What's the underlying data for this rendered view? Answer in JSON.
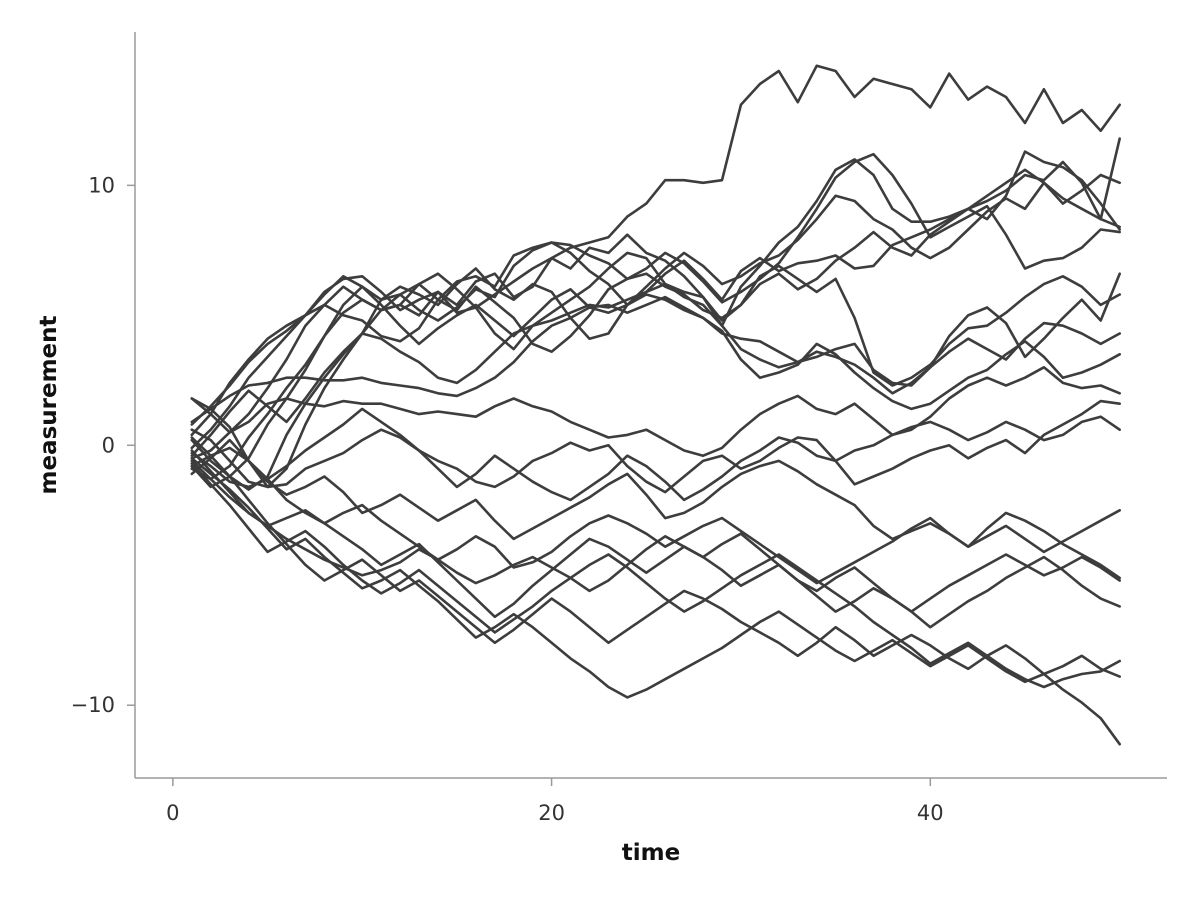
{
  "chart_data": {
    "type": "line",
    "title": "",
    "xlabel": "time",
    "ylabel": "measurement",
    "xlim": [
      -2,
      52.5
    ],
    "ylim": [
      -12.8,
      15.9
    ],
    "xticks": [
      0,
      20,
      40
    ],
    "yticks": [
      -10,
      0,
      10
    ],
    "xtick_labels": [
      "0",
      "20",
      "40"
    ],
    "ytick_labels": [
      "−10",
      "0",
      "10"
    ],
    "grid": false,
    "line_color": "#3d3d3d",
    "x": [
      1,
      2,
      3,
      4,
      5,
      6,
      7,
      8,
      9,
      10,
      11,
      12,
      13,
      14,
      15,
      16,
      17,
      18,
      19,
      20,
      21,
      22,
      23,
      24,
      25,
      26,
      27,
      28,
      29,
      30,
      31,
      32,
      33,
      34,
      35,
      36,
      37,
      38,
      39,
      40,
      41,
      42,
      43,
      44,
      45,
      46,
      47,
      48,
      49,
      50
    ],
    "series": [
      {
        "values": [
          -0.5,
          -0.2,
          0.5,
          1.2,
          2.2,
          3.3,
          4.6,
          5.4,
          6.1,
          5.6,
          5.2,
          5.8,
          6.2,
          6.6,
          6.0,
          5.3,
          5.8,
          6.3,
          6.8,
          7.2,
          7.6,
          7.8,
          8.0,
          8.8,
          9.3,
          10.2,
          10.2,
          10.1,
          10.2,
          13.1,
          13.9,
          14.4,
          13.2,
          14.6,
          14.4,
          13.4,
          14.1,
          13.9,
          13.7,
          13.0,
          14.3,
          13.3,
          13.8,
          13.4,
          12.4,
          13.7,
          12.4,
          12.9,
          12.1,
          13.1
        ]
      },
      {
        "values": [
          -0.8,
          -1.6,
          -1.2,
          -0.5,
          0.8,
          1.8,
          2.9,
          4.2,
          5.1,
          5.6,
          5.2,
          5.4,
          5.0,
          5.9,
          5.4,
          6.3,
          6.6,
          5.7,
          6.1,
          7.2,
          6.8,
          7.6,
          7.4,
          8.1,
          7.4,
          7.1,
          6.5,
          5.7,
          4.6,
          6.1,
          6.9,
          7.8,
          8.4,
          9.4,
          10.6,
          11.0,
          10.4,
          9.1,
          8.6,
          8.6,
          8.8,
          9.1,
          9.4,
          9.8,
          10.4,
          10.2,
          10.9,
          10.1,
          8.7,
          11.8
        ]
      },
      {
        "values": [
          0.2,
          -0.6,
          -1.2,
          -1.7,
          -1.2,
          0.4,
          1.6,
          2.6,
          3.5,
          4.3,
          5.6,
          6.1,
          5.8,
          5.4,
          6.2,
          6.8,
          6.0,
          5.6,
          6.2,
          5.9,
          4.9,
          4.1,
          4.3,
          5.4,
          5.9,
          6.6,
          7.1,
          6.4,
          5.6,
          6.7,
          7.2,
          6.7,
          7.0,
          7.1,
          7.3,
          6.8,
          6.9,
          7.7,
          8.0,
          8.3,
          8.7,
          9.1,
          9.6,
          10.1,
          10.6,
          10.1,
          9.3,
          9.8,
          10.4,
          10.1
        ]
      },
      {
        "values": [
          1.8,
          1.4,
          0.7,
          -0.6,
          -1.6,
          -0.9,
          0.8,
          2.2,
          3.3,
          4.3,
          5.2,
          5.4,
          6.2,
          5.6,
          5.2,
          6.1,
          5.5,
          4.9,
          3.9,
          3.6,
          4.2,
          5.0,
          6.0,
          6.4,
          6.6,
          6.1,
          5.8,
          5.2,
          4.9,
          5.4,
          6.2,
          6.6,
          6.0,
          6.4,
          7.1,
          7.6,
          8.2,
          7.6,
          7.3,
          8.1,
          8.6,
          9.1,
          8.7,
          9.6,
          11.3,
          10.9,
          10.7,
          10.2,
          9.3,
          8.3
        ]
      },
      {
        "values": [
          -0.1,
          0.6,
          1.5,
          2.6,
          3.4,
          4.2,
          5.0,
          5.8,
          6.5,
          6.1,
          5.6,
          5.8,
          5.2,
          4.8,
          5.3,
          6.0,
          5.7,
          6.9,
          7.5,
          7.8,
          7.4,
          6.7,
          6.2,
          5.4,
          6.1,
          6.8,
          7.4,
          6.9,
          6.2,
          6.5,
          7.0,
          7.3,
          7.9,
          8.7,
          9.6,
          9.4,
          8.7,
          8.3,
          7.6,
          7.2,
          7.6,
          8.3,
          9.0,
          9.5,
          9.1,
          10.1,
          9.5,
          9.1,
          8.7,
          8.4
        ]
      },
      {
        "values": [
          0.4,
          1.2,
          2.4,
          3.3,
          4.1,
          4.6,
          5.0,
          5.4,
          5.0,
          4.8,
          4.2,
          4.0,
          4.5,
          5.6,
          6.3,
          6.5,
          6.1,
          7.3,
          7.6,
          7.8,
          7.7,
          7.3,
          7.0,
          6.4,
          6.8,
          7.4,
          7.0,
          6.3,
          5.5,
          5.9,
          6.4,
          7.0,
          8.0,
          9.1,
          10.3,
          10.9,
          11.2,
          10.4,
          9.3,
          8.0,
          8.4,
          8.8,
          9.2,
          8.1,
          6.8,
          7.1,
          7.2,
          7.6,
          8.3,
          8.2
        ]
      },
      {
        "values": [
          0.8,
          1.5,
          2.3,
          3.2,
          3.9,
          4.4,
          5.0,
          5.9,
          6.4,
          6.5,
          5.9,
          5.2,
          5.6,
          5.9,
          5.1,
          5.3,
          4.3,
          3.7,
          4.6,
          5.1,
          5.6,
          6.1,
          6.8,
          7.4,
          7.2,
          6.2,
          5.9,
          5.7,
          4.8,
          5.4,
          6.5,
          6.9,
          6.4,
          5.9,
          6.4,
          4.9,
          2.8,
          2.3,
          2.6,
          3.1,
          3.9,
          4.5,
          4.6,
          5.1,
          5.7,
          6.2,
          6.5,
          6.1,
          5.4,
          5.8
        ]
      },
      {
        "values": [
          -0.9,
          -1.3,
          -0.8,
          0.3,
          1.2,
          2.2,
          3.1,
          4.2,
          5.4,
          6.1,
          5.4,
          4.6,
          3.9,
          4.5,
          5.0,
          5.4,
          4.8,
          4.2,
          4.9,
          5.6,
          6.0,
          5.3,
          5.1,
          5.4,
          5.8,
          5.6,
          5.2,
          4.9,
          4.3,
          4.1,
          4.0,
          3.6,
          3.2,
          3.4,
          3.7,
          3.9,
          2.9,
          2.4,
          2.3,
          3.0,
          4.2,
          5.0,
          5.3,
          4.7,
          3.4,
          4.1,
          4.9,
          5.6,
          4.8,
          6.6
        ]
      },
      {
        "values": [
          -0.4,
          0.4,
          1.3,
          2.1,
          1.5,
          0.9,
          1.8,
          2.8,
          3.6,
          4.3,
          4.1,
          3.6,
          3.2,
          2.6,
          2.4,
          2.9,
          3.6,
          4.3,
          4.6,
          4.8,
          5.1,
          5.4,
          5.3,
          5.6,
          5.9,
          6.2,
          5.7,
          5.4,
          4.6,
          3.7,
          3.3,
          3.0,
          3.2,
          3.6,
          3.4,
          3.1,
          2.6,
          2.0,
          2.4,
          3.0,
          3.6,
          4.1,
          3.7,
          3.3,
          4.1,
          4.7,
          4.6,
          4.3,
          3.9,
          4.3
        ]
      },
      {
        "values": [
          0.9,
          1.4,
          1.9,
          2.3,
          2.4,
          2.6,
          2.6,
          2.5,
          2.5,
          2.6,
          2.4,
          2.3,
          2.2,
          2.0,
          1.9,
          2.2,
          2.6,
          3.2,
          4.0,
          4.6,
          4.9,
          5.3,
          5.4,
          5.1,
          5.4,
          5.7,
          5.3,
          4.9,
          4.4,
          3.3,
          2.6,
          2.8,
          3.1,
          3.9,
          3.5,
          2.8,
          2.2,
          1.7,
          1.4,
          1.6,
          2.1,
          2.6,
          2.9,
          3.5,
          4.0,
          3.4,
          2.6,
          2.8,
          3.1,
          3.5
        ]
      },
      {
        "values": [
          1.8,
          1.2,
          0.5,
          0.9,
          1.6,
          1.8,
          1.6,
          1.5,
          1.7,
          1.6,
          1.6,
          1.4,
          1.2,
          1.3,
          1.2,
          1.1,
          1.5,
          1.8,
          1.5,
          1.3,
          0.9,
          0.6,
          0.3,
          0.4,
          0.6,
          0.2,
          -0.2,
          -0.4,
          -0.1,
          0.6,
          1.2,
          1.6,
          1.9,
          1.4,
          1.2,
          1.6,
          1.0,
          0.4,
          0.6,
          1.1,
          1.8,
          2.3,
          2.6,
          2.3,
          2.6,
          3.0,
          2.4,
          2.2,
          2.3,
          2.0
        ]
      },
      {
        "values": [
          0.6,
          0.2,
          -0.6,
          -1.4,
          -1.6,
          -1.5,
          -0.9,
          -0.6,
          -0.3,
          0.2,
          0.6,
          0.3,
          -0.2,
          -0.6,
          -0.9,
          -1.4,
          -1.6,
          -1.2,
          -0.6,
          -0.3,
          0.1,
          -0.2,
          0.0,
          -0.8,
          -1.4,
          -1.8,
          -1.2,
          -0.6,
          -0.4,
          -0.9,
          -0.6,
          -0.1,
          0.3,
          0.2,
          -0.6,
          -1.5,
          -1.2,
          -0.9,
          -0.5,
          -0.2,
          0.0,
          -0.5,
          -0.1,
          0.2,
          -0.3,
          0.4,
          0.8,
          1.2,
          1.7,
          1.6
        ]
      },
      {
        "values": [
          -0.3,
          -0.8,
          -1.4,
          -1.6,
          -1.3,
          -0.8,
          -0.2,
          0.3,
          0.8,
          1.4,
          0.9,
          0.4,
          -0.2,
          -0.9,
          -1.6,
          -1.1,
          -0.4,
          -0.9,
          -1.4,
          -1.8,
          -2.1,
          -1.6,
          -1.1,
          -0.4,
          -0.8,
          -1.4,
          -2.1,
          -1.7,
          -1.2,
          -0.6,
          -0.2,
          0.3,
          0.1,
          -0.4,
          -0.6,
          -0.2,
          0.0,
          0.4,
          0.7,
          0.9,
          0.6,
          0.2,
          0.5,
          0.9,
          0.6,
          0.2,
          0.4,
          0.9,
          1.1,
          0.6
        ]
      },
      {
        "values": [
          -0.8,
          -0.4,
          -0.1,
          -0.6,
          -1.4,
          -1.9,
          -1.6,
          -1.2,
          -1.8,
          -2.6,
          -2.3,
          -1.9,
          -2.4,
          -2.9,
          -2.5,
          -2.1,
          -2.9,
          -3.6,
          -3.2,
          -2.8,
          -2.4,
          -2.0,
          -1.5,
          -1.1,
          -1.9,
          -2.8,
          -2.6,
          -2.2,
          -1.6,
          -1.1,
          -0.8,
          -0.6,
          -1.0,
          -1.5,
          -1.9,
          -2.3,
          -3.1,
          -3.6,
          -3.3,
          -3.0,
          -3.4,
          -3.9,
          -3.5,
          -3.1,
          -3.6,
          -4.1,
          -3.7,
          -3.3,
          -2.9,
          -2.5
        ]
      },
      {
        "values": [
          -1.1,
          -0.5,
          0.2,
          -0.6,
          -1.3,
          -2.1,
          -2.6,
          -3.0,
          -2.6,
          -2.3,
          -2.9,
          -3.4,
          -3.9,
          -4.4,
          -4.0,
          -3.5,
          -3.9,
          -4.7,
          -4.5,
          -4.1,
          -3.5,
          -3.0,
          -2.7,
          -3.0,
          -3.4,
          -3.9,
          -3.5,
          -3.1,
          -2.8,
          -3.3,
          -3.8,
          -4.3,
          -4.8,
          -5.3,
          -4.9,
          -4.5,
          -4.1,
          -3.7,
          -3.2,
          -2.8,
          -3.4,
          -3.9,
          -3.2,
          -2.6,
          -2.9,
          -3.3,
          -3.8,
          -4.2,
          -4.6,
          -5.1
        ]
      },
      {
        "values": [
          -0.6,
          -1.3,
          -2.0,
          -2.6,
          -3.1,
          -3.6,
          -4.0,
          -4.4,
          -4.7,
          -5.0,
          -4.8,
          -4.5,
          -4.0,
          -4.4,
          -4.9,
          -5.3,
          -5.0,
          -4.6,
          -4.3,
          -4.7,
          -5.1,
          -5.6,
          -5.2,
          -4.6,
          -4.0,
          -3.5,
          -3.9,
          -4.3,
          -3.8,
          -3.4,
          -4.0,
          -4.6,
          -5.2,
          -5.6,
          -5.1,
          -4.7,
          -5.3,
          -5.9,
          -6.4,
          -5.9,
          -5.4,
          -5.0,
          -4.6,
          -4.2,
          -4.6,
          -5.0,
          -4.7,
          -4.3,
          -4.7,
          -5.2
        ]
      },
      {
        "values": [
          -0.2,
          -1.0,
          -1.8,
          -2.6,
          -3.1,
          -2.8,
          -2.5,
          -3.0,
          -3.5,
          -4.0,
          -4.6,
          -4.2,
          -3.8,
          -4.5,
          -5.2,
          -5.9,
          -6.6,
          -6.1,
          -5.4,
          -4.8,
          -4.2,
          -3.6,
          -3.9,
          -4.4,
          -4.9,
          -4.4,
          -3.9,
          -4.3,
          -4.8,
          -5.4,
          -5.0,
          -4.6,
          -5.2,
          -5.8,
          -6.4,
          -6.0,
          -5.5,
          -5.9,
          -6.4,
          -7.0,
          -6.5,
          -6.0,
          -5.6,
          -5.1,
          -4.7,
          -4.3,
          -4.8,
          -5.4,
          -5.9,
          -6.2
        ]
      },
      {
        "values": [
          0.3,
          -0.4,
          -1.2,
          -2.1,
          -3.0,
          -3.8,
          -4.6,
          -5.2,
          -4.8,
          -4.4,
          -5.0,
          -5.6,
          -5.2,
          -5.8,
          -6.4,
          -7.0,
          -7.6,
          -7.1,
          -6.5,
          -5.9,
          -6.4,
          -7.0,
          -7.6,
          -7.1,
          -6.6,
          -6.1,
          -5.6,
          -5.9,
          -6.3,
          -6.8,
          -7.2,
          -7.6,
          -8.1,
          -7.6,
          -7.0,
          -7.5,
          -8.1,
          -7.7,
          -7.3,
          -7.7,
          -8.2,
          -8.6,
          -8.1,
          -7.7,
          -8.2,
          -8.8,
          -8.5,
          -8.1,
          -8.6,
          -8.9
        ]
      },
      {
        "values": [
          -0.5,
          -1.1,
          -1.7,
          -2.4,
          -3.2,
          -4.0,
          -3.6,
          -4.3,
          -4.9,
          -5.5,
          -5.2,
          -4.8,
          -5.4,
          -6.0,
          -6.7,
          -7.4,
          -7.0,
          -6.5,
          -7.0,
          -7.6,
          -8.2,
          -8.7,
          -9.3,
          -9.7,
          -9.4,
          -9.0,
          -8.6,
          -8.2,
          -7.8,
          -7.3,
          -6.8,
          -6.4,
          -6.9,
          -7.4,
          -7.9,
          -8.3,
          -7.9,
          -7.5,
          -8.0,
          -8.5,
          -8.1,
          -7.7,
          -8.2,
          -8.7,
          -9.1,
          -8.8,
          -9.4,
          -9.9,
          -10.5,
          -11.5
        ]
      },
      {
        "values": [
          -0.7,
          -1.5,
          -2.3,
          -3.2,
          -4.1,
          -3.7,
          -3.3,
          -3.9,
          -4.6,
          -5.2,
          -5.7,
          -5.3,
          -4.8,
          -5.4,
          -6.0,
          -6.6,
          -7.2,
          -6.7,
          -6.2,
          -5.6,
          -5.1,
          -4.6,
          -4.2,
          -4.7,
          -5.3,
          -5.9,
          -6.4,
          -6.0,
          -5.5,
          -5.0,
          -4.6,
          -4.2,
          -4.7,
          -5.2,
          -5.7,
          -6.2,
          -6.8,
          -7.3,
          -7.8,
          -8.4,
          -8.0,
          -7.6,
          -8.1,
          -8.6,
          -9.0,
          -9.3,
          -9.0,
          -8.8,
          -8.7,
          -8.3
        ]
      }
    ]
  }
}
